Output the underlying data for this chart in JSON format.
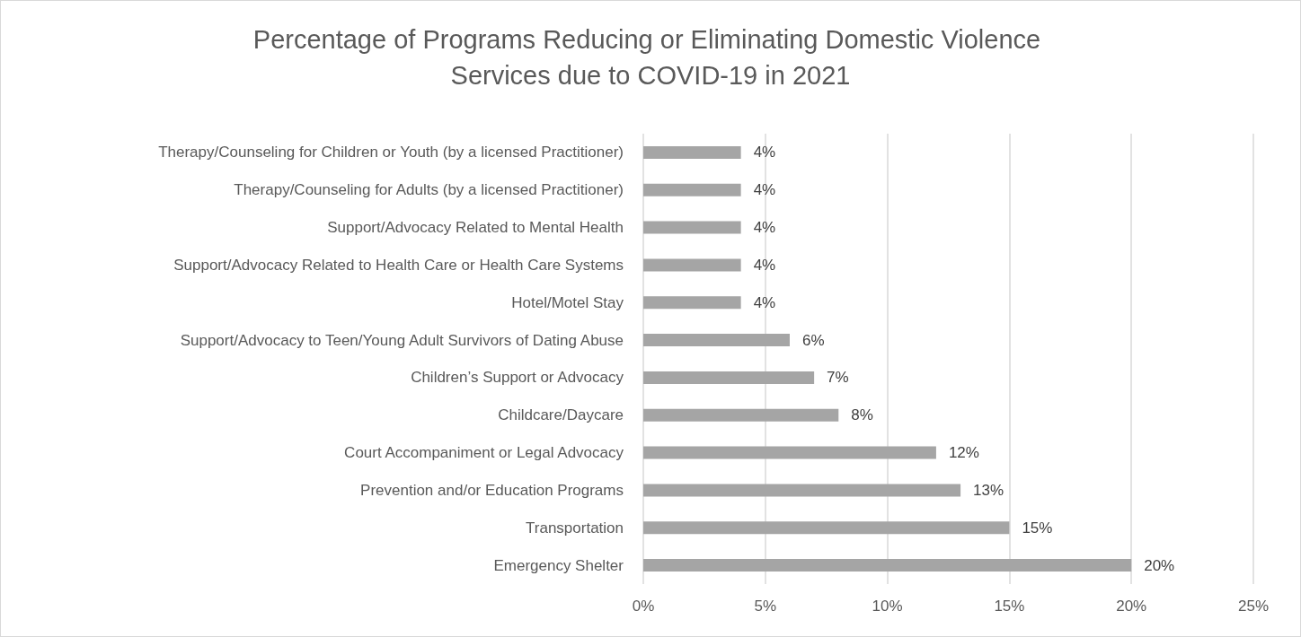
{
  "chart_data": {
    "type": "bar",
    "orientation": "horizontal",
    "title": "Percentage of Programs Reducing or Eliminating Domestic Violence Services due to COVID-19 in 2021",
    "categories": [
      "Therapy/Counseling for Children or Youth (by a licensed Practitioner)",
      "Therapy/Counseling for Adults (by a licensed Practitioner)",
      "Support/Advocacy Related to Mental Health",
      "Support/Advocacy Related to Health Care or Health Care Systems",
      "Hotel/Motel Stay",
      "Support/Advocacy to Teen/Young Adult Survivors of Dating Abuse",
      "Children’s Support or Advocacy",
      "Childcare/Daycare",
      "Court Accompaniment or Legal Advocacy",
      "Prevention and/or Education Programs",
      "Transportation",
      "Emergency Shelter"
    ],
    "values": [
      4,
      4,
      4,
      4,
      4,
      6,
      7,
      8,
      12,
      13,
      15,
      20
    ],
    "value_labels": [
      "4%",
      "4%",
      "4%",
      "4%",
      "4%",
      "6%",
      "7%",
      "8%",
      "12%",
      "13%",
      "15%",
      "20%"
    ],
    "color": "#a5a5a5",
    "xlim": [
      0,
      25
    ],
    "xticks": [
      {
        "value": 0,
        "label": "0%"
      },
      {
        "value": 5,
        "label": "5%"
      },
      {
        "value": 10,
        "label": "10%"
      },
      {
        "value": 15,
        "label": "15%"
      },
      {
        "value": 20,
        "label": "20%"
      },
      {
        "value": 25,
        "label": "25%"
      }
    ],
    "grid": "x"
  }
}
